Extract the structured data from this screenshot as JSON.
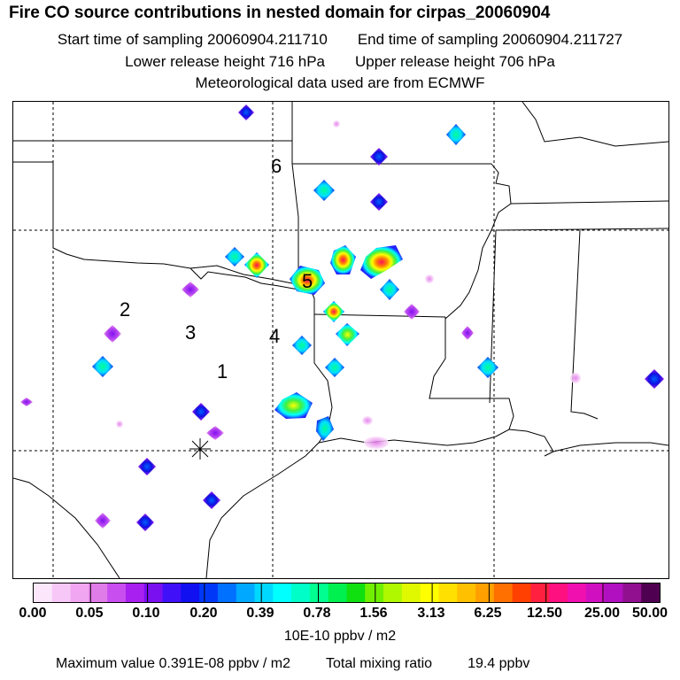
{
  "header": {
    "title": "Fire CO source contributions in nested domain for cirpas_20060904",
    "start_label": "Start time of sampling 20060904.211710",
    "end_label": "End time of sampling 20060904.211727",
    "lower_label": "Lower release height  716 hPa",
    "upper_label": "Upper release height  706 hPa",
    "met_label": "Meteorological data used are from ECMWF"
  },
  "map": {
    "region_labels": [
      {
        "id": "1",
        "text": "1"
      },
      {
        "id": "2",
        "text": "2"
      },
      {
        "id": "3",
        "text": "3"
      },
      {
        "id": "4",
        "text": "4"
      },
      {
        "id": "5",
        "text": "5"
      },
      {
        "id": "6",
        "text": "6"
      }
    ],
    "receptor_marker": "asterisk-icon"
  },
  "colorbar": {
    "tick_labels": [
      "0.00",
      "0.05",
      "0.10",
      "0.20",
      "0.39",
      "0.78",
      "1.56",
      "3.13",
      "6.25",
      "12.50",
      "25.00",
      "50.00"
    ],
    "colors": [
      "#fce6fc",
      "#f7c8f7",
      "#f0a6f0",
      "#e07ce8",
      "#c84ef0",
      "#a820f0",
      "#7a10f0",
      "#4010f8",
      "#1010f0",
      "#0038f8",
      "#0070ff",
      "#00a8ff",
      "#00d8ff",
      "#00ffff",
      "#00ffc8",
      "#00ff90",
      "#00f050",
      "#10e010",
      "#70f000",
      "#b0f800",
      "#e0f800",
      "#ffff00",
      "#ffe000",
      "#ffc000",
      "#ffa000",
      "#ff7000",
      "#ff4000",
      "#ff2040",
      "#ff1080",
      "#f010b0",
      "#d010c0",
      "#b010c0",
      "#901090",
      "#500050"
    ],
    "units": "10E-10 ppbv / m2"
  },
  "footer": {
    "max_value": "Maximum value  0.391E-08 ppbv / m2",
    "total_label": "Total mixing ratio",
    "total_value": "19.4 ppbv"
  }
}
